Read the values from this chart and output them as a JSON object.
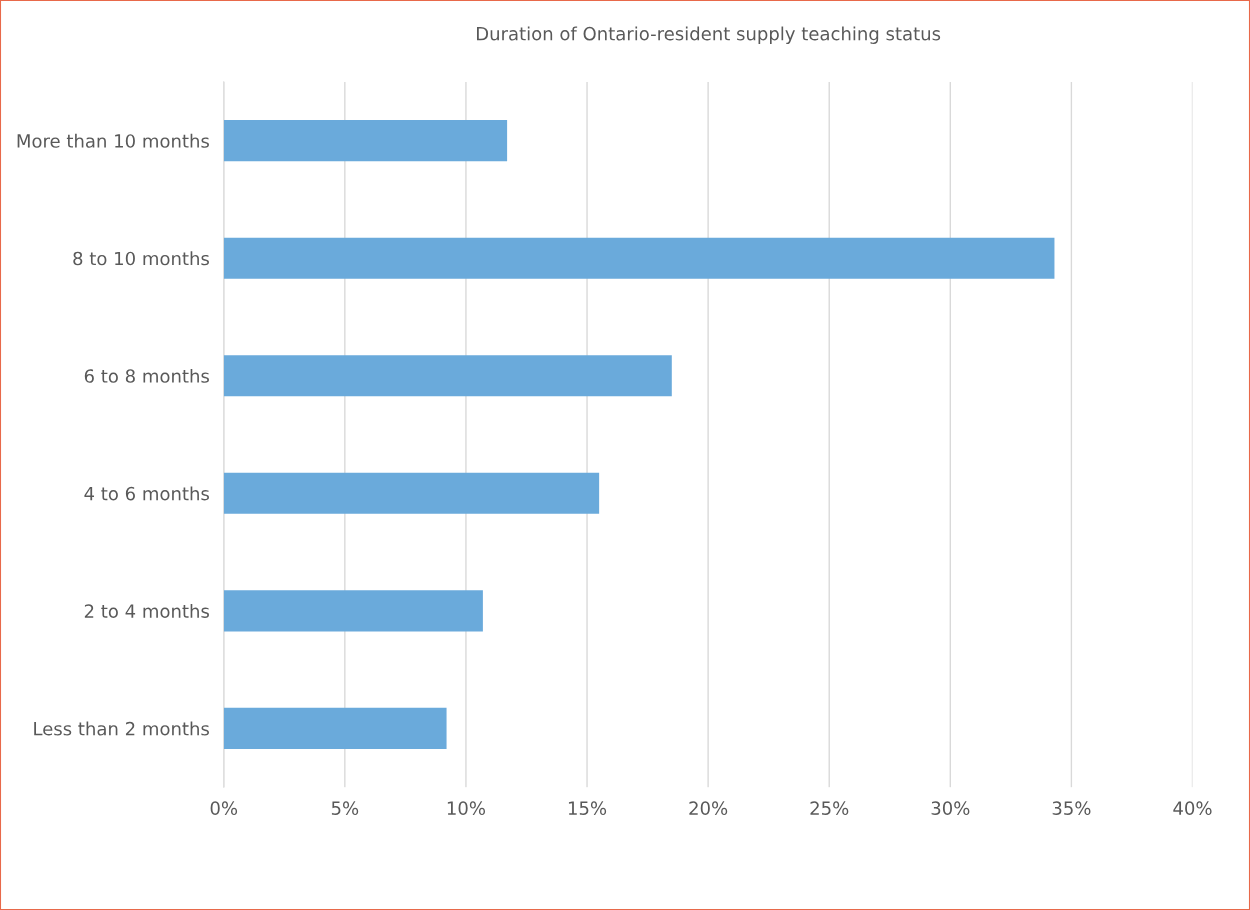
{
  "chart_data": {
    "type": "bar",
    "orientation": "horizontal",
    "title": "Duration of Ontario-resident supply teaching status",
    "categories": [
      "More than 10 months",
      "8 to 10 months",
      "6 to 8 months",
      "4 to 6 months",
      "2 to 4 months",
      "Less than 2 months"
    ],
    "values": [
      11.7,
      34.3,
      18.5,
      15.5,
      10.7,
      9.2
    ],
    "color": "#6aaadb",
    "xlim": [
      0,
      40
    ],
    "xticks": [
      {
        "value": 0,
        "label": "0%"
      },
      {
        "value": 5,
        "label": "5%"
      },
      {
        "value": 10,
        "label": "10%"
      },
      {
        "value": 15,
        "label": "15%"
      },
      {
        "value": 20,
        "label": "20%"
      },
      {
        "value": 25,
        "label": "25%"
      },
      {
        "value": 30,
        "label": "30%"
      },
      {
        "value": 35,
        "label": "35%"
      },
      {
        "value": 40,
        "label": "40%"
      }
    ],
    "grid": "x"
  }
}
